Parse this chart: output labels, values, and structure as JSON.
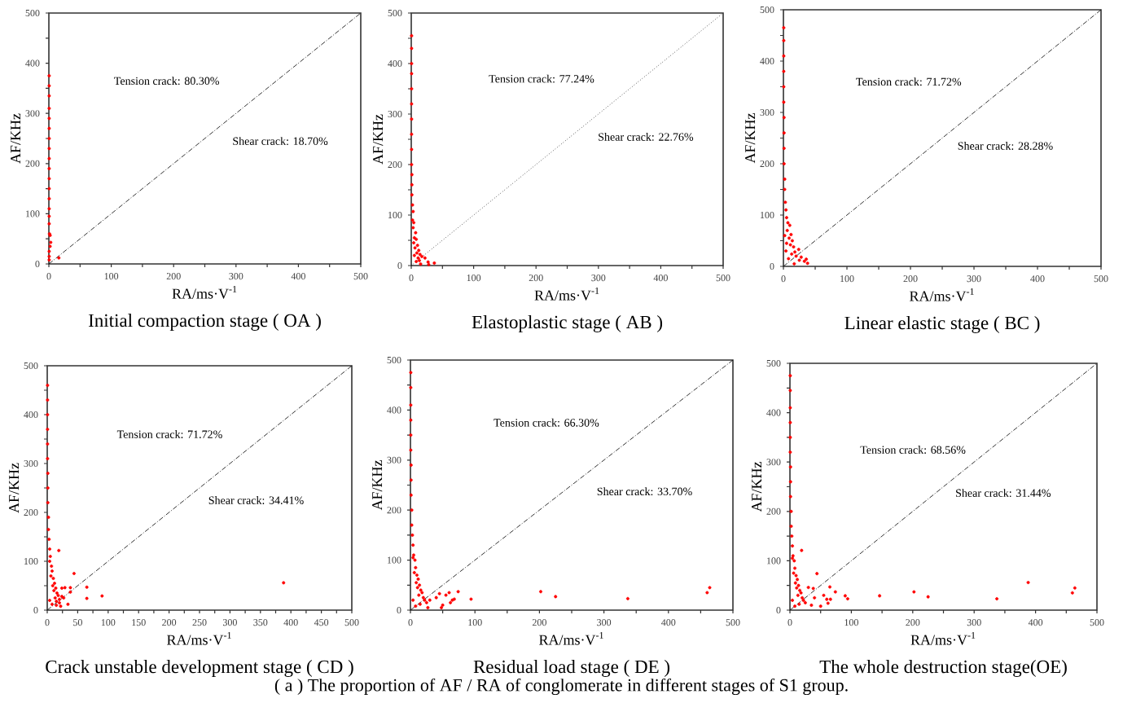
{
  "chart_data": [
    {
      "type": "scatter",
      "title": "Initial compaction stage ( OA )",
      "xlabel": "RA/ms·V$^{-1}$",
      "ylabel": "AF/KHz",
      "xlim": [
        0,
        500
      ],
      "ylim": [
        0,
        500
      ],
      "marker": "circle",
      "xticks": [
        0,
        {
          "value": 50,
          "label": null
        },
        100,
        {
          "value": 150,
          "label": null
        },
        200,
        {
          "value": 250,
          "label": null
        },
        300,
        {
          "value": 350,
          "label": null
        },
        400,
        {
          "value": 450,
          "label": null
        },
        500
      ],
      "yticks": [
        0,
        {
          "value": 50,
          "label": null
        },
        100,
        {
          "value": 150,
          "label": null
        },
        200,
        {
          "value": 250,
          "label": null
        },
        300,
        {
          "value": 350,
          "label": null
        },
        400,
        {
          "value": 450,
          "label": null
        },
        500
      ],
      "series": [
        {
          "color": "#ff0000",
          "x": [
            0.5,
            0.5,
            0.5,
            0.5,
            0.5,
            0.5,
            0.5,
            0.5,
            0.5,
            0.5,
            0.5,
            0.5,
            0.5,
            0.5,
            0.5,
            0.5,
            1,
            2,
            3,
            2,
            0.5,
            0.5,
            0.5,
            16
          ],
          "values": [
            375,
            355,
            335,
            310,
            290,
            270,
            250,
            230,
            210,
            190,
            170,
            150,
            130,
            110,
            95,
            80,
            60,
            57,
            43,
            35,
            25,
            15,
            8,
            12
          ]
        },
        {
          "type": "line",
          "color": "#000000",
          "line_style": "dashed",
          "marker": "none",
          "x": [
            0,
            500
          ],
          "values": [
            0,
            500
          ]
        }
      ],
      "annotations": [
        "Tension crack: 80.30%",
        "Shear crack: 18.70%"
      ]
    },
    {
      "type": "scatter",
      "title": "Elastoplastic stage ( AB )",
      "xlabel": "RA/ms·V$^{-1}$",
      "ylabel": "AF/KHz",
      "xlim": [
        0,
        500
      ],
      "ylim": [
        0,
        500
      ],
      "marker": "circle",
      "xticks": [
        0,
        {
          "value": 50,
          "label": null
        },
        100,
        {
          "value": 150,
          "label": null
        },
        200,
        {
          "value": 250,
          "label": null
        },
        300,
        {
          "value": 350,
          "label": null
        },
        400,
        {
          "value": 450,
          "label": null
        },
        500
      ],
      "yticks": [
        0,
        {
          "value": 50,
          "label": null
        },
        100,
        {
          "value": 150,
          "label": null
        },
        200,
        {
          "value": 250,
          "label": null
        },
        300,
        {
          "value": 350,
          "label": null
        },
        400,
        {
          "value": 450,
          "label": null
        },
        500
      ],
      "series": [
        {
          "color": "#ff0000",
          "x": [
            0.5,
            0.5,
            0.5,
            0.5,
            0.5,
            0.5,
            0.5,
            0.5,
            0.5,
            0.5,
            1,
            1,
            1,
            2,
            3,
            2,
            4,
            3,
            7,
            5,
            8,
            4,
            10,
            6,
            12,
            9,
            14,
            5,
            17,
            11,
            13,
            22,
            8,
            27,
            37,
            15,
            28
          ],
          "values": [
            455,
            430,
            400,
            380,
            350,
            320,
            290,
            260,
            230,
            200,
            180,
            160,
            140,
            120,
            107,
            90,
            85,
            75,
            65,
            55,
            52,
            45,
            40,
            35,
            30,
            25,
            22,
            20,
            18,
            15,
            10,
            15,
            8,
            7,
            5,
            3,
            2
          ]
        },
        {
          "type": "line",
          "color": "#000000",
          "line_style": "dotted",
          "marker": "none",
          "x": [
            0,
            500
          ],
          "values": [
            0,
            500
          ]
        }
      ],
      "annotations": [
        "Tension crack: 77.24%",
        "Shear crack: 22.76%"
      ]
    },
    {
      "type": "scatter",
      "title": "Linear elastic stage ( BC )",
      "xlabel": "RA/ms·V$^{-1}$",
      "ylabel": "AF/KHz",
      "xlim": [
        0,
        500
      ],
      "ylim": [
        0,
        500
      ],
      "marker": "circle",
      "xticks": [
        0,
        {
          "value": 50,
          "label": null
        },
        100,
        {
          "value": 150,
          "label": null
        },
        200,
        {
          "value": 250,
          "label": null
        },
        300,
        {
          "value": 350,
          "label": null
        },
        400,
        {
          "value": 450,
          "label": null
        },
        500
      ],
      "yticks": [
        0,
        {
          "value": 50,
          "label": null
        },
        100,
        {
          "value": 150,
          "label": null
        },
        200,
        {
          "value": 250,
          "label": null
        },
        300,
        {
          "value": 350,
          "label": null
        },
        400,
        {
          "value": 450,
          "label": null
        },
        500
      ],
      "series": [
        {
          "color": "#ff0000",
          "x": [
            0.5,
            0.5,
            0.5,
            0.5,
            0.5,
            0.5,
            1,
            1,
            1,
            1,
            2,
            2,
            3,
            4,
            5,
            7,
            10,
            6,
            12,
            9,
            14,
            11,
            16,
            24,
            18,
            13,
            20,
            28,
            36,
            25,
            33,
            38,
            17,
            8,
            4,
            2,
            5
          ],
          "values": [
            465,
            440,
            410,
            380,
            350,
            320,
            290,
            260,
            230,
            200,
            170,
            150,
            125,
            110,
            95,
            85,
            80,
            70,
            62,
            55,
            50,
            42,
            38,
            33,
            28,
            24,
            20,
            18,
            14,
            12,
            10,
            6,
            5,
            15,
            30,
            60,
            45
          ]
        },
        {
          "type": "line",
          "color": "#000000",
          "line_style": "dashed",
          "marker": "none",
          "x": [
            0,
            500
          ],
          "values": [
            0,
            500
          ]
        }
      ],
      "annotations": [
        "Tension crack: 71.72%",
        "Shear crack: 28.28%"
      ]
    },
    {
      "type": "scatter",
      "title": "Crack unstable development stage ( CD )",
      "xlabel": "RA/ms·V$^{-1}$",
      "ylabel": "AF/KHz",
      "xlim": [
        0,
        500
      ],
      "ylim": [
        0,
        500
      ],
      "marker": "circle",
      "xticks": [
        0,
        {
          "value": 25,
          "label": null
        },
        50,
        {
          "value": 75,
          "label": null
        },
        100,
        {
          "value": 125,
          "label": null
        },
        150,
        {
          "value": 175,
          "label": null
        },
        200,
        {
          "value": 225,
          "label": null
        },
        250,
        {
          "value": 275,
          "label": null
        },
        300,
        {
          "value": 325,
          "label": null
        },
        350,
        {
          "value": 375,
          "label": null
        },
        400,
        {
          "value": 425,
          "label": null
        },
        450,
        {
          "value": 475,
          "label": null
        },
        500
      ],
      "yticks": [
        0,
        {
          "value": 50,
          "label": null
        },
        100,
        {
          "value": 150,
          "label": null
        },
        200,
        {
          "value": 250,
          "label": null
        },
        300,
        {
          "value": 350,
          "label": null
        },
        400,
        {
          "value": 450,
          "label": null
        },
        500
      ],
      "series": [
        {
          "color": "#ff0000",
          "x": [
            0.5,
            0.5,
            0.5,
            0.5,
            0.5,
            0.5,
            1,
            1,
            1,
            2,
            2,
            3,
            4,
            5,
            7,
            4,
            8,
            6,
            10,
            12,
            9,
            14,
            11,
            16,
            18,
            13,
            20,
            15,
            8,
            4,
            19,
            44,
            65,
            29,
            38,
            24,
            38,
            65,
            90,
            388,
            34,
            24,
            27,
            20,
            15,
            22
          ],
          "values": [
            460,
            430,
            400,
            370,
            340,
            310,
            280,
            250,
            220,
            190,
            165,
            145,
            125,
            110,
            90,
            100,
            80,
            70,
            65,
            55,
            50,
            45,
            40,
            35,
            30,
            25,
            22,
            18,
            12,
            20,
            122,
            75,
            47,
            46,
            46,
            45,
            37,
            24,
            29,
            56,
            12,
            28,
            25,
            15,
            10,
            8
          ]
        },
        {
          "type": "line",
          "color": "#000000",
          "line_style": "dashed",
          "marker": "none",
          "x": [
            0,
            500
          ],
          "values": [
            0,
            500
          ]
        }
      ],
      "annotations": [
        "Tension crack: 71.72%",
        "Shear crack: 34.41%"
      ]
    },
    {
      "type": "scatter",
      "title": "Residual load stage ( DE )",
      "xlabel": "RA/ms·V$^{-1}$",
      "ylabel": "AF/KHz",
      "xlim": [
        0,
        500
      ],
      "ylim": [
        0,
        500
      ],
      "marker": "circle",
      "xticks": [
        0,
        {
          "value": 50,
          "label": null
        },
        100,
        {
          "value": 150,
          "label": null
        },
        200,
        {
          "value": 250,
          "label": null
        },
        300,
        {
          "value": 350,
          "label": null
        },
        400,
        {
          "value": 450,
          "label": null
        },
        500
      ],
      "yticks": [
        0,
        {
          "value": 50,
          "label": null
        },
        100,
        {
          "value": 150,
          "label": null
        },
        200,
        {
          "value": 250,
          "label": null
        },
        300,
        {
          "value": 350,
          "label": null
        },
        400,
        {
          "value": 450,
          "label": null
        },
        500
      ],
      "series": [
        {
          "color": "#ff0000",
          "x": [
            0.5,
            0.5,
            0.5,
            0.5,
            0.5,
            0.5,
            1,
            1,
            1,
            2,
            2,
            3,
            4,
            5,
            7,
            4,
            8,
            6,
            10,
            12,
            9,
            14,
            11,
            16,
            18,
            13,
            20,
            22,
            25,
            15,
            8,
            4,
            45,
            55,
            60,
            65,
            68,
            62,
            50,
            48,
            74,
            94,
            202,
            225,
            337,
            460,
            464,
            40,
            30,
            27
          ],
          "values": [
            475,
            445,
            410,
            380,
            350,
            320,
            290,
            260,
            230,
            200,
            170,
            150,
            130,
            110,
            100,
            105,
            85,
            75,
            70,
            62,
            55,
            50,
            45,
            40,
            35,
            30,
            25,
            20,
            15,
            12,
            8,
            20,
            33,
            30,
            35,
            20,
            22,
            15,
            10,
            5,
            37,
            22,
            37,
            27,
            23,
            35,
            45,
            25,
            20,
            5
          ]
        },
        {
          "type": "line",
          "color": "#000000",
          "line_style": "dashed",
          "marker": "none",
          "x": [
            0,
            500
          ],
          "values": [
            0,
            500
          ]
        }
      ],
      "annotations": [
        "Tension crack: 66.30%",
        "Shear crack: 33.70%"
      ]
    },
    {
      "type": "scatter",
      "title": "The whole destruction stage(OE)",
      "xlabel": "RA/ms·V$^{-1}$",
      "ylabel": "AF/KHz",
      "xlim": [
        0,
        500
      ],
      "ylim": [
        0,
        500
      ],
      "marker": "circle",
      "xticks": [
        0,
        {
          "value": 50,
          "label": null
        },
        100,
        {
          "value": 150,
          "label": null
        },
        200,
        {
          "value": 250,
          "label": null
        },
        300,
        {
          "value": 350,
          "label": null
        },
        400,
        {
          "value": 450,
          "label": null
        },
        500
      ],
      "yticks": [
        0,
        {
          "value": 50,
          "label": null
        },
        100,
        {
          "value": 150,
          "label": null
        },
        200,
        {
          "value": 250,
          "label": null
        },
        300,
        {
          "value": 350,
          "label": null
        },
        400,
        {
          "value": 450,
          "label": null
        },
        500
      ],
      "series": [
        {
          "color": "#ff0000",
          "x": [
            0.5,
            0.5,
            0.5,
            0.5,
            0.5,
            0.5,
            1,
            1,
            1,
            2,
            2,
            3,
            4,
            5,
            7,
            4,
            8,
            6,
            10,
            12,
            9,
            14,
            11,
            16,
            18,
            13,
            20,
            22,
            25,
            15,
            8,
            4,
            19,
            44,
            65,
            74,
            90,
            94,
            146,
            202,
            225,
            337,
            388,
            460,
            464,
            55,
            60,
            62,
            66,
            50,
            40,
            38,
            30,
            35
          ],
          "values": [
            475,
            445,
            410,
            380,
            350,
            320,
            290,
            260,
            230,
            200,
            170,
            150,
            130,
            110,
            100,
            105,
            85,
            75,
            70,
            62,
            55,
            50,
            45,
            40,
            35,
            30,
            25,
            20,
            15,
            12,
            8,
            20,
            121,
            74,
            47,
            37,
            29,
            23,
            29,
            37,
            27,
            23,
            56,
            35,
            45,
            30,
            22,
            14,
            22,
            8,
            25,
            44,
            46,
            10
          ]
        },
        {
          "type": "line",
          "color": "#000000",
          "line_style": "dashed",
          "marker": "none",
          "x": [
            0,
            500
          ],
          "values": [
            0,
            500
          ]
        }
      ],
      "annotations": [
        "Tension crack: 68.56%",
        "Shear crack: 31.44%",
        "( a ) The proportion of AF / RA of conglomerate in different stages of S1 group."
      ]
    }
  ]
}
